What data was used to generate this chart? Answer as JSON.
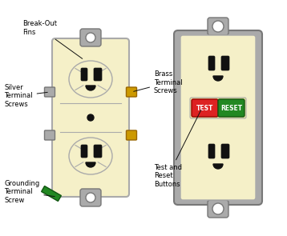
{
  "bg_color": "#ffffff",
  "outlet_cream": "#f5f0c8",
  "outlet_cream2": "#eee8a0",
  "gray": "#aaaaaa",
  "dark_gray": "#777777",
  "black": "#111111",
  "brass": "#cc9900",
  "silver": "#aaaaaa",
  "green_screw": "#228822",
  "red_btn": "#dd2222",
  "green_btn": "#228822",
  "white_text": "#ffffff",
  "labels": {
    "break_out": "Break-Out\nFins",
    "silver": "Silver\nTerminal\nScrews",
    "brass": "Brass\nTerminal\nScrews",
    "grounding": "Grounding\nTerminal\nScrew",
    "test_reset": "Test and\nReset\nButtons"
  }
}
